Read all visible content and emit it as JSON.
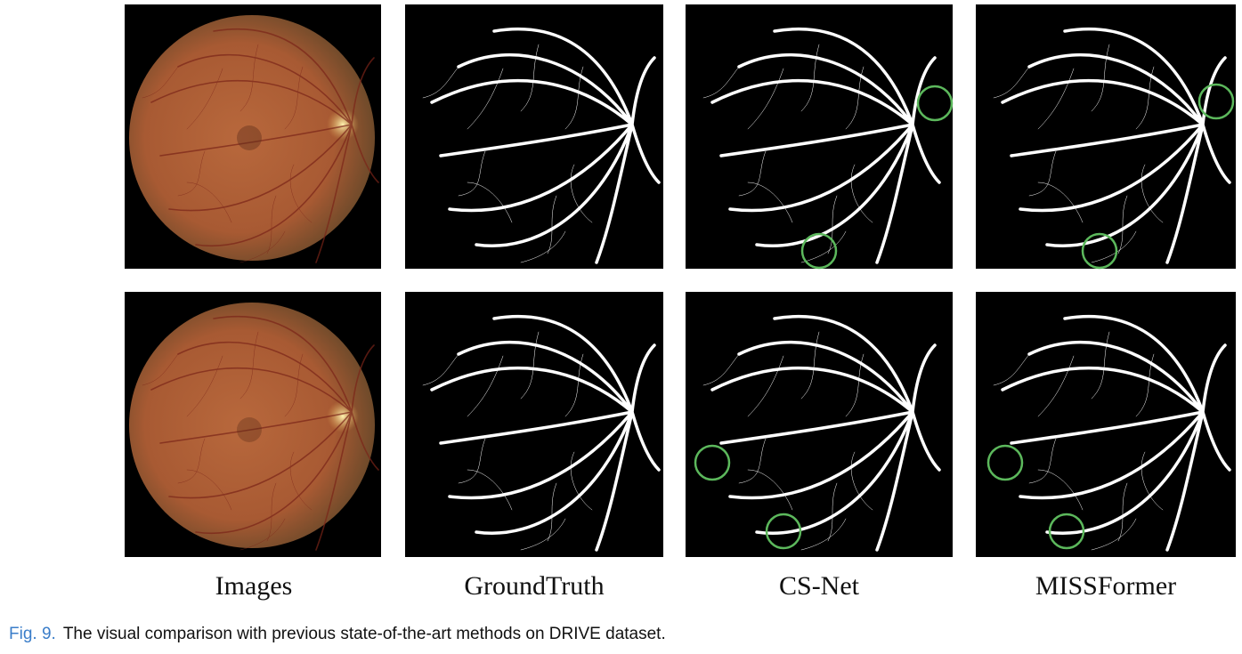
{
  "columns": [
    {
      "label": "Images"
    },
    {
      "label": "GroundTruth"
    },
    {
      "label": "CS-Net"
    },
    {
      "label": "MISSFormer"
    }
  ],
  "caption": {
    "label": "Fig. 9.",
    "text": "The visual comparison with previous state-of-the-art methods on DRIVE dataset."
  }
}
